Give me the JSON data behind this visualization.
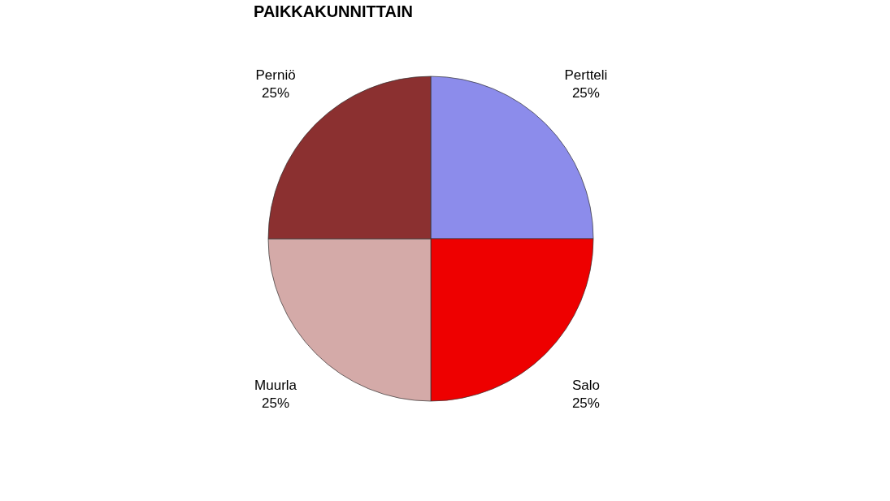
{
  "chart_data": {
    "type": "pie",
    "title": "PAIKKAKUNNITTAIN",
    "categories": [
      "Pertteli",
      "Salo",
      "Muurla",
      "Perniö"
    ],
    "values": [
      25,
      25,
      25,
      25
    ],
    "value_labels": [
      "25%",
      "25%",
      "25%",
      "25%"
    ],
    "colors": [
      "#8c8ceb",
      "#ee0000",
      "#d4aaa8",
      "#8b3030"
    ],
    "legend": false
  }
}
